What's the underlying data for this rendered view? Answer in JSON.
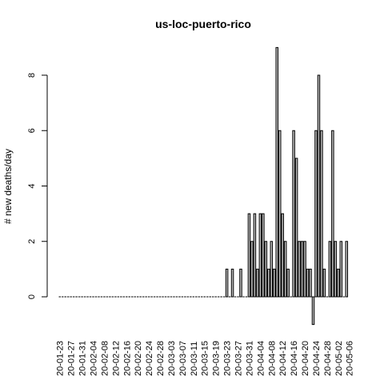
{
  "chart_data": {
    "type": "bar",
    "title": "us-loc-puerto-rico",
    "xlabel": "",
    "ylabel": "# new deaths/day",
    "ylim": [
      -1,
      9
    ],
    "yticks": [
      0,
      2,
      4,
      6,
      8
    ],
    "grid": false,
    "legend": "none",
    "bar_fill": "#bebebe",
    "bar_stroke": "#000000",
    "x_tick_labels": [
      "20-01-23",
      "20-01-27",
      "20-01-31",
      "20-02-04",
      "20-02-08",
      "20-02-12",
      "20-02-16",
      "20-02-20",
      "20-02-24",
      "20-02-28",
      "20-03-03",
      "20-03-07",
      "20-03-11",
      "20-03-15",
      "20-03-19",
      "20-03-23",
      "20-03-27",
      "20-03-31",
      "20-04-04",
      "20-04-08",
      "20-04-12",
      "20-04-16",
      "20-04-20",
      "20-04-24",
      "20-04-28",
      "20-05-02",
      "20-05-06"
    ],
    "start_date": "20-01-23",
    "values": [
      0,
      0,
      0,
      0,
      0,
      0,
      0,
      0,
      0,
      0,
      0,
      0,
      0,
      0,
      0,
      0,
      0,
      0,
      0,
      0,
      0,
      0,
      0,
      0,
      0,
      0,
      0,
      0,
      0,
      0,
      0,
      0,
      0,
      0,
      0,
      0,
      0,
      0,
      0,
      0,
      0,
      0,
      0,
      0,
      0,
      0,
      0,
      0,
      0,
      0,
      0,
      0,
      0,
      0,
      0,
      0,
      0,
      0,
      0,
      0,
      1,
      0,
      1,
      0,
      0,
      1,
      0,
      0,
      3,
      2,
      3,
      1,
      3,
      3,
      2,
      1,
      2,
      1,
      9,
      6,
      3,
      2,
      1,
      0,
      6,
      5,
      2,
      2,
      2,
      1,
      1,
      -1,
      6,
      8,
      6,
      1,
      0,
      2,
      6,
      2,
      1,
      2,
      0,
      2
    ]
  }
}
